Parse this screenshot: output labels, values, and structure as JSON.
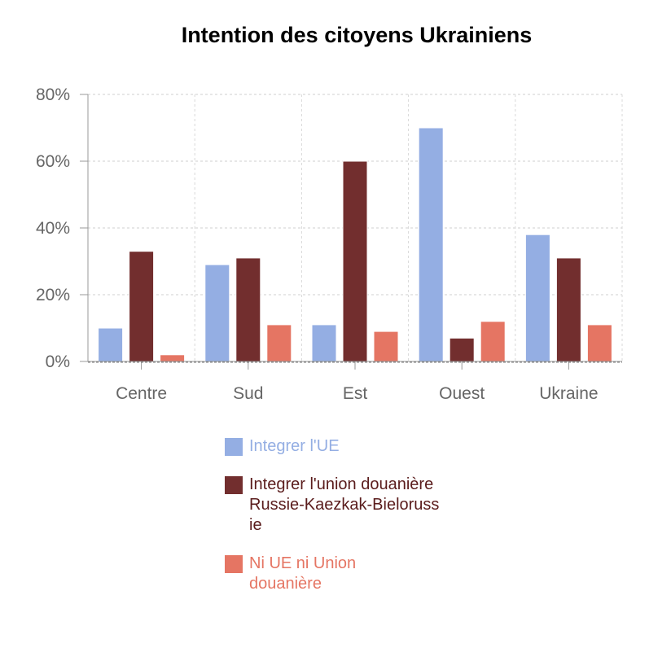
{
  "chart_data": {
    "type": "bar",
    "title": "Intention des citoyens Ukrainiens",
    "categories": [
      "Centre",
      "Sud",
      "Est",
      "Ouest",
      "Ukraine"
    ],
    "series": [
      {
        "name": "Integrer l'UE",
        "color": "#94aee3",
        "values": [
          10,
          29,
          11,
          70,
          38
        ]
      },
      {
        "name": "Integrer l'union douanière Russie-Kaezkak-Bielorussie",
        "color": "#722e2e",
        "values": [
          33,
          31,
          60,
          7,
          31
        ]
      },
      {
        "name": "Ni UE ni Union douanière",
        "color": "#e57563",
        "values": [
          2,
          11,
          9,
          12,
          11
        ]
      }
    ],
    "yticks": [
      "0%",
      "20%",
      "40%",
      "60%",
      "80%"
    ],
    "ylim": [
      0,
      80
    ],
    "grid": true,
    "legend_position": "bottom"
  }
}
